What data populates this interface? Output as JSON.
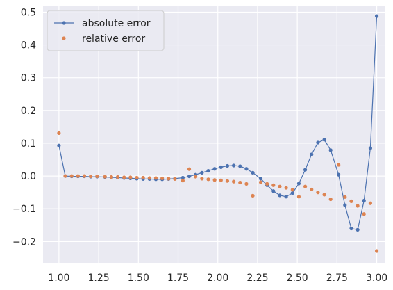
{
  "chart_data": {
    "type": "line",
    "title": "",
    "xlabel": "",
    "ylabel": "",
    "xlim": [
      0.9,
      3.05
    ],
    "ylim": [
      -0.265,
      0.52
    ],
    "grid": true,
    "background_color": "#eaeaf2",
    "grid_color": "#ffffff",
    "legend_position": "top-left",
    "x_ticks": [
      1.0,
      1.25,
      1.5,
      1.75,
      2.0,
      2.25,
      2.5,
      2.75,
      3.0
    ],
    "x_tick_labels": [
      "1.00",
      "1.25",
      "1.50",
      "1.75",
      "2.00",
      "2.25",
      "2.50",
      "2.75",
      "3.00"
    ],
    "y_ticks": [
      -0.2,
      -0.1,
      0.0,
      0.1,
      0.2,
      0.3,
      0.4,
      0.5
    ],
    "y_tick_labels": [
      "−0.2",
      "−0.1",
      "0.0",
      "0.1",
      "0.2",
      "0.3",
      "0.4",
      "0.5"
    ],
    "series": [
      {
        "name": "absolute error",
        "style": "line-with-markers",
        "color": "#4c72b0",
        "points": [
          [
            1.0,
            0.093
          ],
          [
            1.04,
            0.0
          ],
          [
            1.08,
            -0.001
          ],
          [
            1.12,
            -0.001
          ],
          [
            1.16,
            -0.001
          ],
          [
            1.2,
            -0.002
          ],
          [
            1.24,
            -0.002
          ],
          [
            1.29,
            -0.003
          ],
          [
            1.33,
            -0.004
          ],
          [
            1.37,
            -0.005
          ],
          [
            1.41,
            -0.006
          ],
          [
            1.45,
            -0.007
          ],
          [
            1.49,
            -0.008
          ],
          [
            1.53,
            -0.009
          ],
          [
            1.57,
            -0.009
          ],
          [
            1.61,
            -0.01
          ],
          [
            1.65,
            -0.01
          ],
          [
            1.69,
            -0.009
          ],
          [
            1.73,
            -0.008
          ],
          [
            1.78,
            -0.005
          ],
          [
            1.82,
            -0.001
          ],
          [
            1.86,
            0.004
          ],
          [
            1.9,
            0.01
          ],
          [
            1.94,
            0.016
          ],
          [
            1.98,
            0.022
          ],
          [
            2.02,
            0.027
          ],
          [
            2.06,
            0.031
          ],
          [
            2.1,
            0.032
          ],
          [
            2.14,
            0.03
          ],
          [
            2.18,
            0.022
          ],
          [
            2.22,
            0.01
          ],
          [
            2.27,
            -0.008
          ],
          [
            2.31,
            -0.028
          ],
          [
            2.35,
            -0.046
          ],
          [
            2.39,
            -0.059
          ],
          [
            2.43,
            -0.063
          ],
          [
            2.47,
            -0.052
          ],
          [
            2.51,
            -0.023
          ],
          [
            2.55,
            0.019
          ],
          [
            2.59,
            0.066
          ],
          [
            2.63,
            0.102
          ],
          [
            2.67,
            0.111
          ],
          [
            2.71,
            0.079
          ],
          [
            2.76,
            0.004
          ],
          [
            2.8,
            -0.089
          ],
          [
            2.84,
            -0.16
          ],
          [
            2.88,
            -0.164
          ],
          [
            2.92,
            -0.075
          ],
          [
            2.96,
            0.085
          ],
          [
            3.0,
            0.488
          ]
        ]
      },
      {
        "name": "relative error",
        "style": "markers",
        "color": "#dd8452",
        "points": [
          [
            1.0,
            0.131
          ],
          [
            1.04,
            0.0
          ],
          [
            1.08,
            0.0
          ],
          [
            1.12,
            0.0
          ],
          [
            1.16,
            0.0
          ],
          [
            1.2,
            -0.001
          ],
          [
            1.24,
            -0.001
          ],
          [
            1.29,
            -0.002
          ],
          [
            1.33,
            -0.003
          ],
          [
            1.37,
            -0.003
          ],
          [
            1.41,
            -0.004
          ],
          [
            1.45,
            -0.004
          ],
          [
            1.49,
            -0.005
          ],
          [
            1.53,
            -0.005
          ],
          [
            1.57,
            -0.006
          ],
          [
            1.61,
            -0.006
          ],
          [
            1.65,
            -0.007
          ],
          [
            1.69,
            -0.008
          ],
          [
            1.73,
            -0.009
          ],
          [
            1.78,
            -0.014
          ],
          [
            1.82,
            0.021
          ],
          [
            1.86,
            -0.002
          ],
          [
            1.9,
            -0.008
          ],
          [
            1.94,
            -0.01
          ],
          [
            1.98,
            -0.012
          ],
          [
            2.02,
            -0.013
          ],
          [
            2.06,
            -0.015
          ],
          [
            2.1,
            -0.017
          ],
          [
            2.14,
            -0.02
          ],
          [
            2.18,
            -0.024
          ],
          [
            2.22,
            -0.06
          ],
          [
            2.27,
            -0.019
          ],
          [
            2.31,
            -0.024
          ],
          [
            2.35,
            -0.028
          ],
          [
            2.39,
            -0.032
          ],
          [
            2.43,
            -0.036
          ],
          [
            2.47,
            -0.042
          ],
          [
            2.51,
            -0.063
          ],
          [
            2.55,
            -0.032
          ],
          [
            2.59,
            -0.041
          ],
          [
            2.63,
            -0.05
          ],
          [
            2.67,
            -0.057
          ],
          [
            2.71,
            -0.071
          ],
          [
            2.76,
            0.034
          ],
          [
            2.8,
            -0.064
          ],
          [
            2.84,
            -0.077
          ],
          [
            2.88,
            -0.091
          ],
          [
            2.92,
            -0.116
          ],
          [
            2.96,
            -0.083
          ],
          [
            3.0,
            -0.229
          ]
        ]
      }
    ]
  }
}
